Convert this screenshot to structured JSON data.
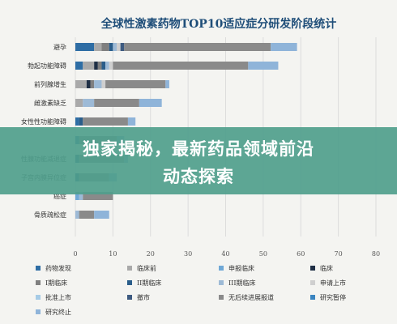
{
  "banner": {
    "line1": "独家揭秘，最新药品领域前沿",
    "line2": "动态探索"
  },
  "chart_data": {
    "type": "bar",
    "orientation": "horizontal",
    "stacked": true,
    "title": "全球性激素药物TOP10适应症分研发阶段统计",
    "xlabel": "",
    "ylabel": "",
    "xlim": [
      0,
      80
    ],
    "xticks": [
      0,
      10,
      20,
      30,
      40,
      50,
      60,
      70,
      80
    ],
    "grid": true,
    "legend_position": "bottom",
    "categories": [
      "避孕",
      "勃起功能障碍",
      "前列腺增生",
      "雌激素缺乏",
      "女性性功能障碍",
      "",
      "性腺功能减退症",
      "子宫内膜异位症",
      "癌症",
      "骨质疏松症"
    ],
    "series": [
      {
        "name": "药物发现",
        "color": "#2e6da4",
        "values": [
          5,
          2,
          0,
          0,
          1,
          1,
          0,
          0,
          0,
          0
        ]
      },
      {
        "name": "临床前",
        "color": "#a9a9a9",
        "values": [
          2,
          3,
          3,
          2,
          0,
          0,
          0,
          0,
          0,
          0
        ]
      },
      {
        "name": "申报临床",
        "color": "#6fa8d6",
        "values": [
          0,
          0,
          0,
          0,
          0,
          0,
          0,
          0,
          1,
          0
        ]
      },
      {
        "name": "临床",
        "color": "#1f2f45",
        "values": [
          0,
          1,
          1,
          0,
          0,
          0,
          0,
          0,
          0,
          0
        ]
      },
      {
        "name": "I期临床",
        "color": "#7f7f7f",
        "values": [
          2,
          1,
          1,
          0,
          0,
          0,
          0,
          0,
          0,
          0
        ]
      },
      {
        "name": "II期临床",
        "color": "#2a5d8a",
        "values": [
          1,
          1,
          0,
          0,
          1,
          0,
          1,
          1,
          0,
          0
        ]
      },
      {
        "name": "III期临床",
        "color": "#9dbad6",
        "values": [
          1,
          1,
          2,
          3,
          0,
          0,
          0,
          0,
          1,
          1
        ]
      },
      {
        "name": "申请上市",
        "color": "#cfcfcf",
        "values": [
          1,
          1,
          1,
          0,
          0,
          0,
          0,
          0,
          0,
          0
        ]
      },
      {
        "name": "批准上市",
        "color": "#a6cbe6",
        "values": [
          0,
          0,
          0,
          0,
          0,
          0,
          0,
          0,
          0,
          0
        ]
      },
      {
        "name": "撤市",
        "color": "#3d5a80",
        "values": [
          1,
          0,
          0,
          0,
          0,
          0,
          0,
          0,
          0,
          0
        ]
      },
      {
        "name": "无后续进展报道",
        "color": "#8a8a8a",
        "values": [
          39,
          36,
          16,
          12,
          12,
          10,
          12,
          8,
          8,
          4
        ]
      },
      {
        "name": "研究暂停",
        "color": "#3a84c0",
        "values": [
          0,
          0,
          0,
          0,
          0,
          0,
          0,
          0,
          0,
          0
        ]
      },
      {
        "name": "研究终止",
        "color": "#8fb4d9",
        "values": [
          7,
          8,
          1,
          6,
          2,
          2,
          1,
          2,
          0,
          4
        ]
      }
    ]
  }
}
